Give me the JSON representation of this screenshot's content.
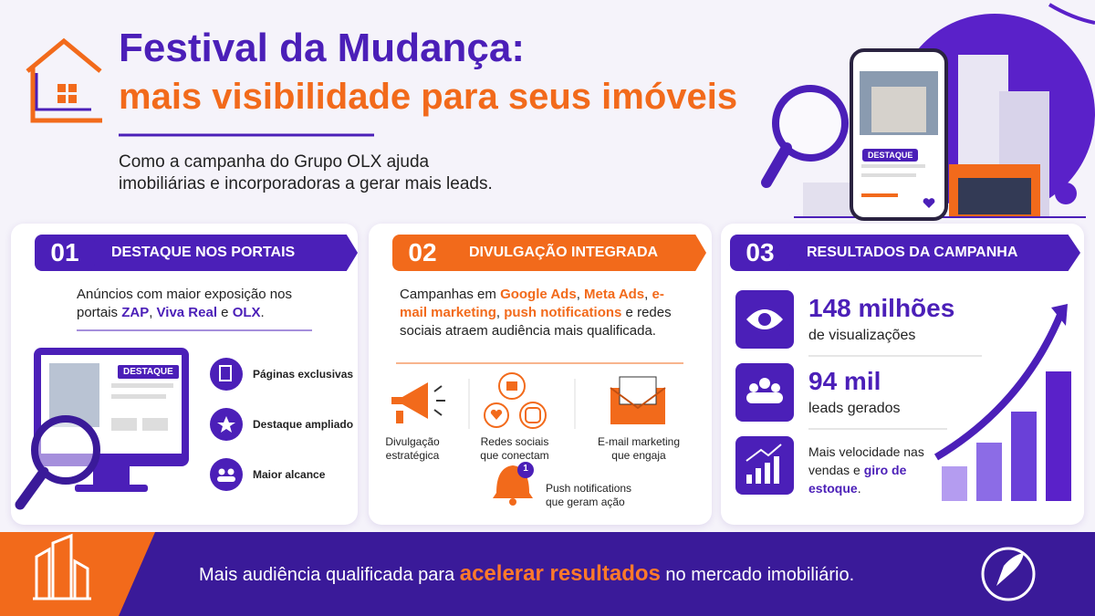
{
  "header": {
    "title_line1": "Festival da Mudança:",
    "title_line2": "mais visibilidade para seus imóveis",
    "subtitle_line1": "Como a campanha do Grupo OLX ajuda",
    "subtitle_line2": "imobiliárias e incorporadoras a gerar mais leads."
  },
  "phone": {
    "badge": "DESTAQUE"
  },
  "cards": [
    {
      "number": "01",
      "title": "DESTAQUE NOS PORTAIS",
      "description": [
        "Anúncios com maior exposição nos portais ",
        "ZAP",
        ", ",
        "Viva Real",
        " e ",
        "OLX",
        "."
      ],
      "monitor_badge": "DESTAQUE",
      "features": [
        "Páginas exclusivas",
        "Destaque ampliado",
        "Maior alcance"
      ]
    },
    {
      "number": "02",
      "title": "DIVULGAÇÃO INTEGRADA",
      "description": [
        "Campanhas em ",
        "Google Ads",
        ", ",
        "Meta Ads",
        ", ",
        "e-mail marketing",
        ", ",
        "push notifications",
        " e redes sociais atraem audiência mais qualificada."
      ],
      "channels": [
        [
          "Divulgação",
          "estratégica"
        ],
        [
          "Redes sociais",
          "que conectam"
        ],
        [
          "E-mail marketing",
          "que engaja"
        ],
        [
          "Push notifications",
          "que geram ação"
        ]
      ],
      "push_badge": "1"
    },
    {
      "number": "03",
      "title": "RESULTADOS DA CAMPANHA",
      "stats": [
        {
          "value": "148 milhões",
          "label": "de visualizações"
        },
        {
          "value": "94 mil",
          "label": "leads gerados"
        }
      ],
      "speed": [
        "Mais velocidade nas vendas e ",
        "giro de estoque",
        "."
      ]
    }
  ],
  "footer": [
    "Mais audiência qualificada para ",
    "acelerar resultados",
    " no mercado imobiliário."
  ]
}
